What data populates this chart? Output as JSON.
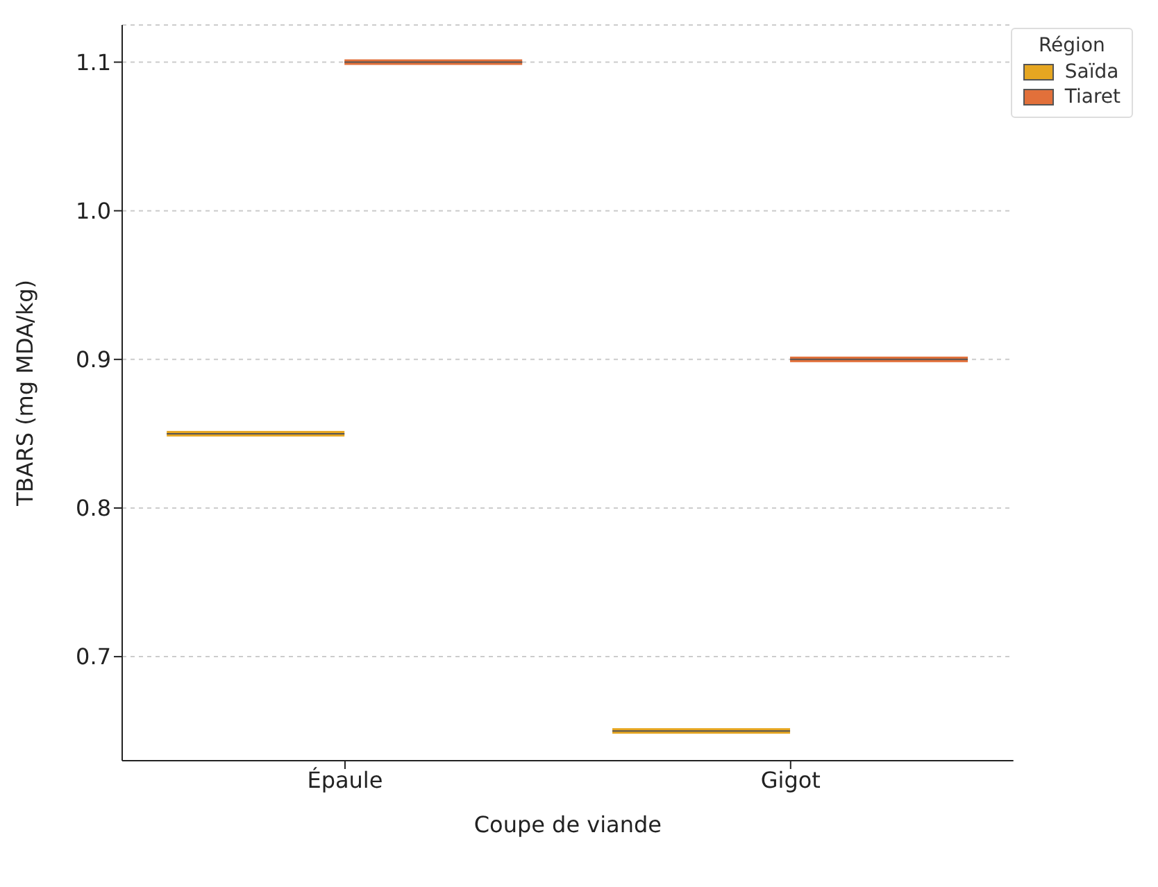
{
  "chart_data": {
    "type": "box",
    "xlabel": "Coupe de viande",
    "ylabel": "TBARS (mg MDA/kg)",
    "legend_title": "Région",
    "categories": [
      "Épaule",
      "Gigot"
    ],
    "series": [
      {
        "name": "Saïda",
        "color": "#e6a621",
        "boxes": [
          {
            "low": 0.85,
            "q1": 0.85,
            "median": 0.85,
            "q3": 0.85,
            "high": 0.85
          },
          {
            "low": 0.65,
            "q1": 0.65,
            "median": 0.65,
            "q3": 0.65,
            "high": 0.65
          }
        ]
      },
      {
        "name": "Tiaret",
        "color": "#e2703a",
        "boxes": [
          {
            "low": 1.1,
            "q1": 1.1,
            "median": 1.1,
            "q3": 1.1,
            "high": 1.1
          },
          {
            "low": 0.9,
            "q1": 0.9,
            "median": 0.9,
            "q3": 0.9,
            "high": 0.9
          }
        ]
      }
    ],
    "ylim": [
      0.63,
      1.125
    ],
    "yticks": [
      0.7,
      0.8,
      0.9,
      {
        "value": 1,
        "label": "1.0"
      },
      1.1
    ],
    "grid": "y",
    "legend": "top right"
  }
}
